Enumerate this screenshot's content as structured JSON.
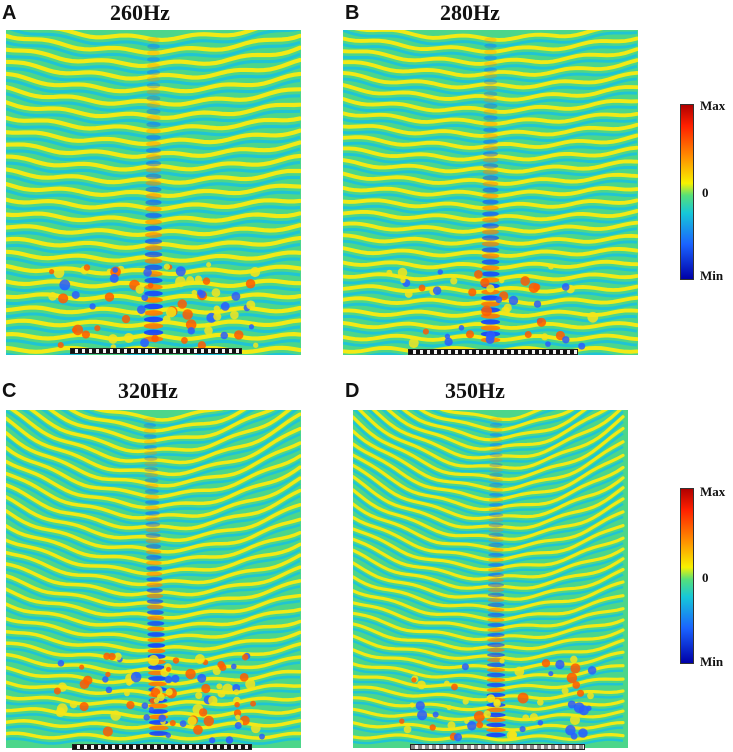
{
  "panels": [
    {
      "letter": "A",
      "title": "260Hz"
    },
    {
      "letter": "B",
      "title": "280Hz"
    },
    {
      "letter": "C",
      "title": "320Hz"
    },
    {
      "letter": "D",
      "title": "350Hz"
    }
  ],
  "colorbar": {
    "max_label": "Max",
    "zero_label": "0",
    "min_label": "Min"
  },
  "colors": {
    "field_background": "#4cd68a",
    "max": "#b00000",
    "min": "#0000a8"
  }
}
